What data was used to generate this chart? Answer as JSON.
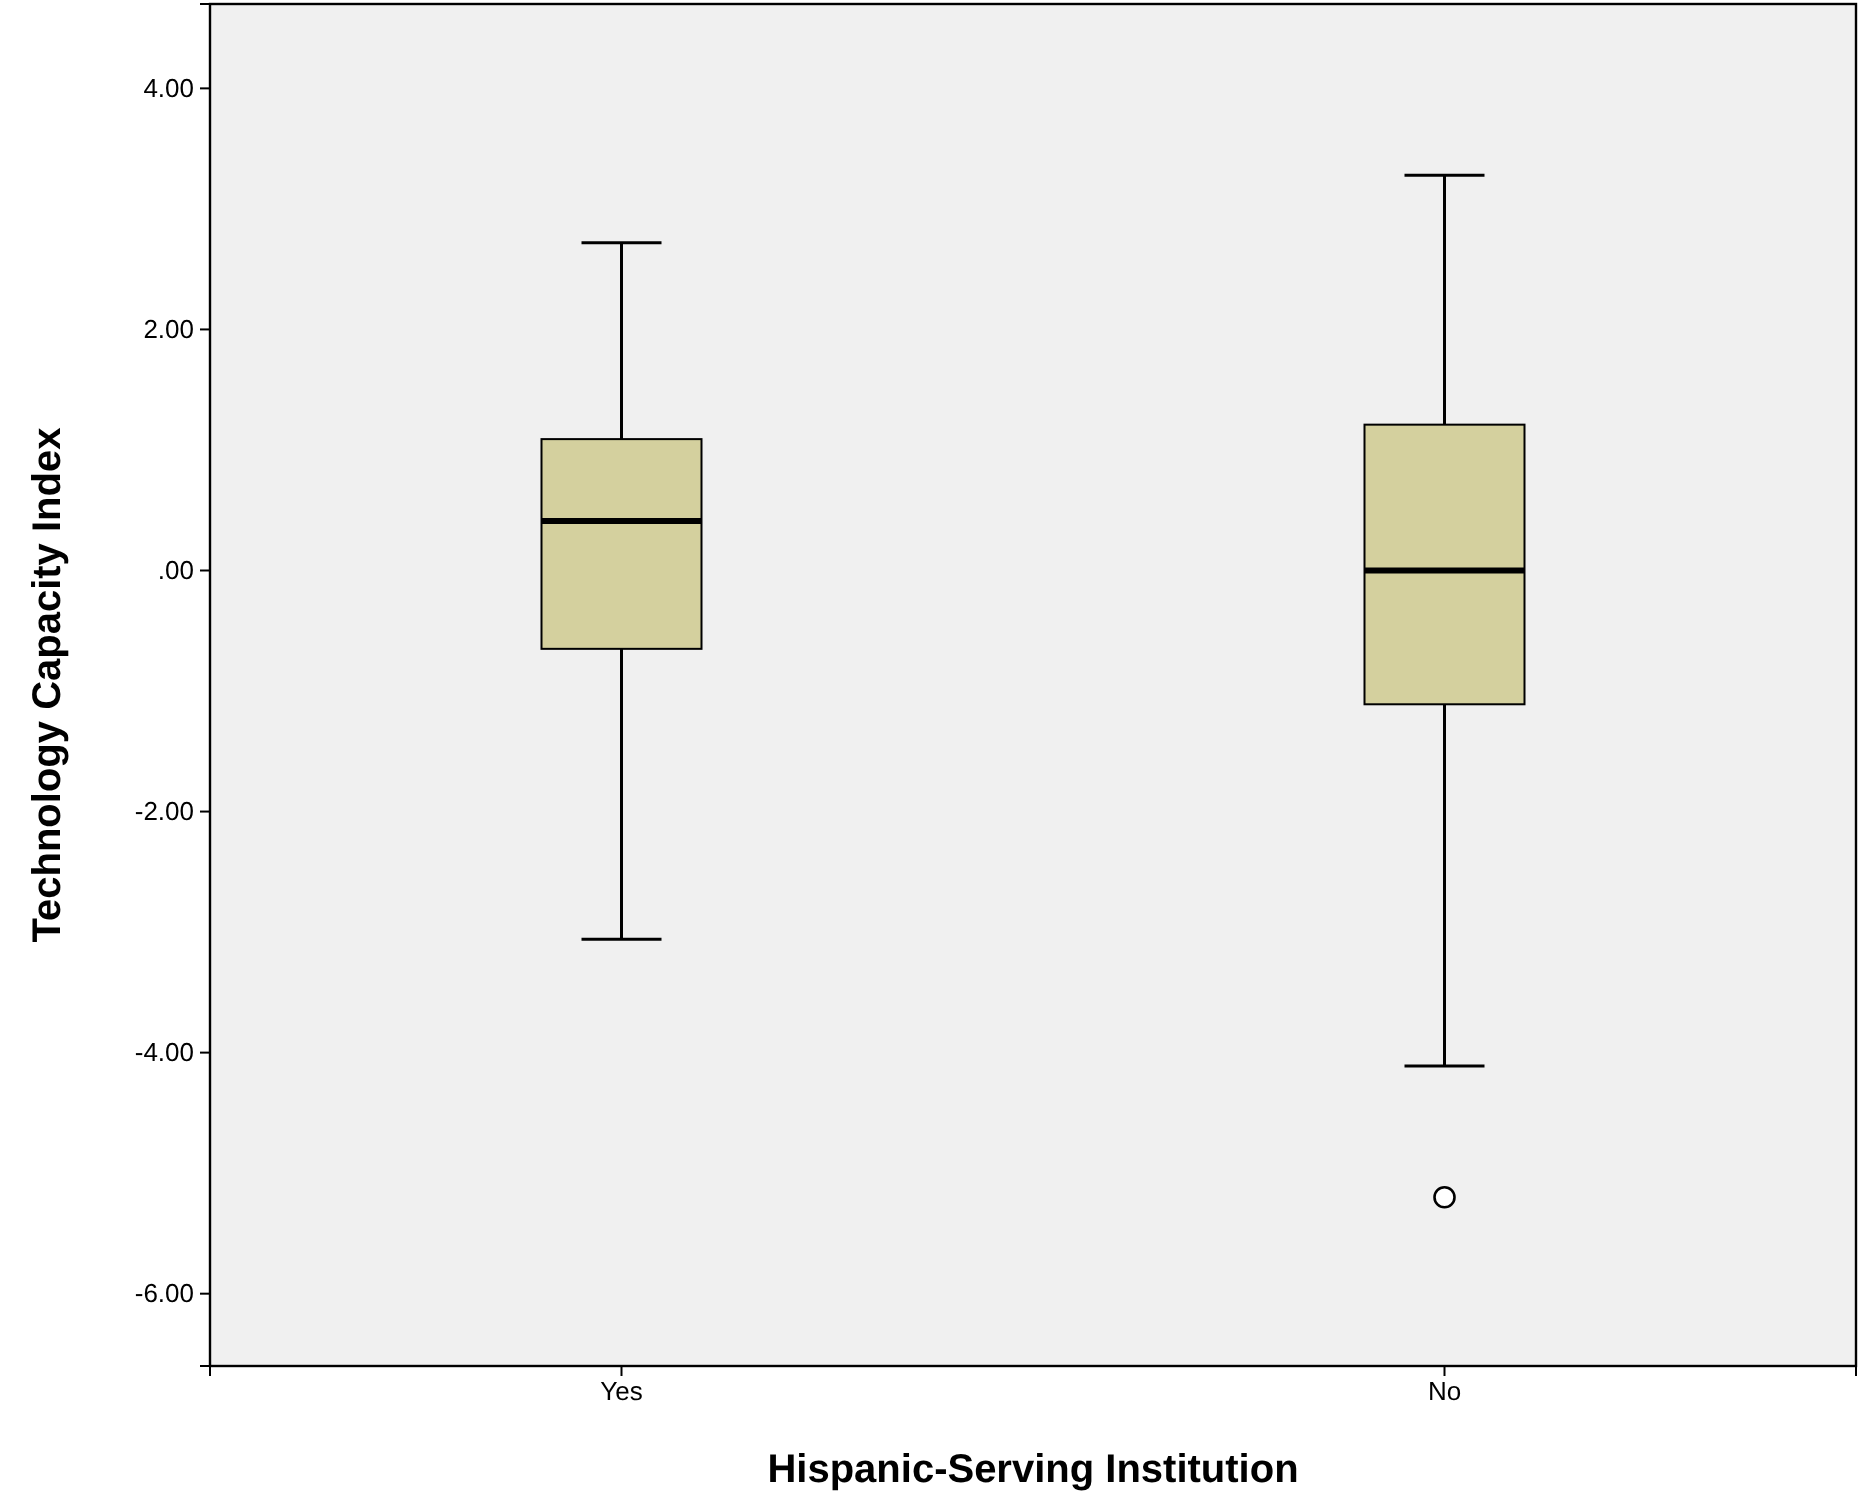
{
  "chart_data": {
    "type": "box",
    "xlabel": "Hispanic-Serving Institution",
    "ylabel": "Technology Capacity Index",
    "categories": [
      "Yes",
      "No"
    ],
    "color": "#d4d09e",
    "boxes": [
      {
        "low": -3.06,
        "q1": -0.65,
        "median": 0.41,
        "q3": 1.09,
        "high": 2.72
      },
      {
        "low": -4.11,
        "q1": -1.11,
        "median": 0.0,
        "q3": 1.21,
        "high": 3.28,
        "outliers": [
          -5.2
        ]
      }
    ],
    "ylim": [
      -6.6,
      4.7
    ],
    "yticks": [
      {
        "value": 4,
        "label": "4.00"
      },
      {
        "value": 2,
        "label": "2.00"
      },
      {
        "value": 0,
        "label": ".00"
      },
      {
        "value": -2,
        "label": "-2.00"
      },
      {
        "value": -4,
        "label": "-4.00"
      },
      {
        "value": -6,
        "label": "-6.00"
      }
    ],
    "grid": false
  }
}
